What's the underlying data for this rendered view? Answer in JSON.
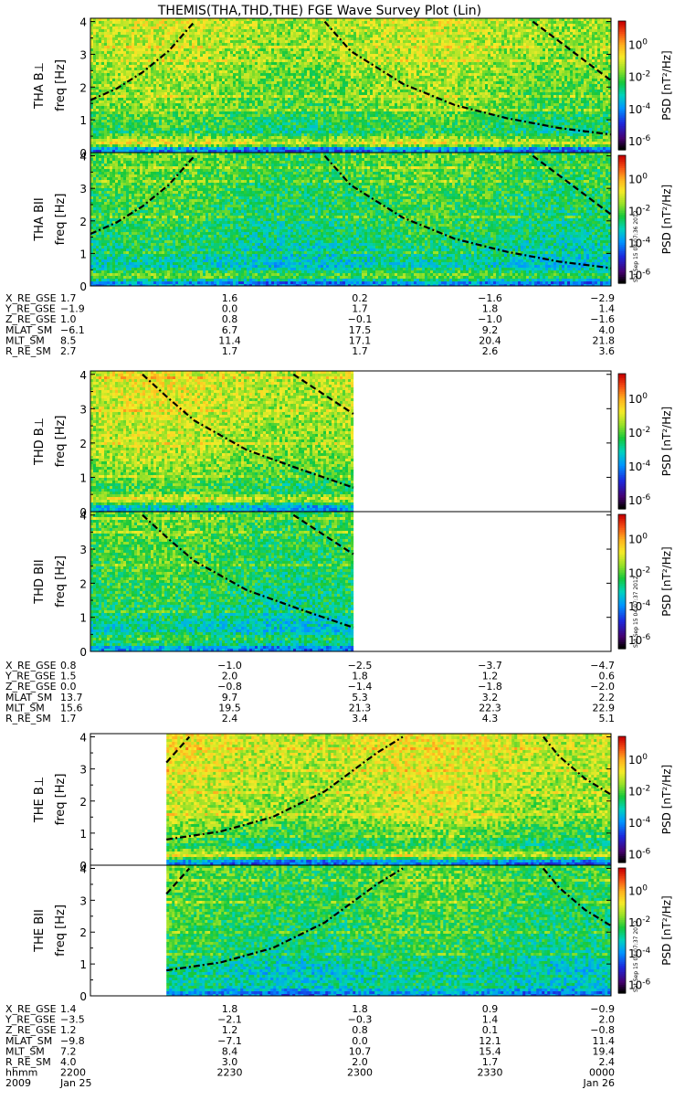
{
  "title": "THEMIS(THA,THD,THE) FGE Wave Survey Plot (Lin)",
  "colorbar": {
    "label": "PSD [nT²/Hz]",
    "exponents": [
      "0",
      "-2",
      "-4",
      "-6"
    ],
    "base": "10"
  },
  "stamps": {
    "tha": "Sat Sep 15 04:07:36 2012",
    "thd": "Sat Sep 15 04:07:37 2012",
    "the": "Sat Sep 15 04:07:37 2012"
  },
  "ylabel_common": "freq [Hz]",
  "freq_ticks": [
    "0",
    "1",
    "2",
    "3",
    "4"
  ],
  "chart_data": [
    {
      "type": "heatmap",
      "title": "THA B⊥",
      "ylabel": "freq [Hz]",
      "ylim": [
        0,
        4.1
      ],
      "colorscale": "rainbow",
      "colorbar_ylim_log10": [
        -6.5,
        1.5
      ],
      "x_start_frac": 0.0,
      "x_end_frac": 1.0,
      "psd_log10_profile": [
        {
          "freq": 0.1,
          "level": -4.2
        },
        {
          "freq": 0.3,
          "level": -0.8
        },
        {
          "freq": 0.6,
          "level": -2.6
        },
        {
          "freq": 1.5,
          "level": -1.8
        },
        {
          "freq": 4.0,
          "level": -1.2
        }
      ],
      "curves": [
        {
          "style": "dashdot",
          "points": [
            [
              0,
              1.6
            ],
            [
              0.05,
              1.95
            ],
            [
              0.1,
              2.45
            ],
            [
              0.15,
              3.1
            ],
            [
              0.2,
              4.0
            ]
          ]
        },
        {
          "style": "dashdot",
          "points": [
            [
              0.45,
              4.0
            ],
            [
              0.5,
              3.1
            ],
            [
              0.6,
              2.1
            ],
            [
              0.7,
              1.45
            ],
            [
              0.8,
              1.05
            ],
            [
              0.9,
              0.75
            ],
            [
              1.0,
              0.55
            ]
          ]
        },
        {
          "style": "dashed",
          "points": [
            [
              0.85,
              4.0
            ],
            [
              0.9,
              3.4
            ],
            [
              0.95,
              2.8
            ],
            [
              1.0,
              2.2
            ]
          ]
        }
      ]
    },
    {
      "type": "heatmap",
      "title": "THA BII",
      "ylabel": "freq [Hz]",
      "ylim": [
        0,
        4.1
      ],
      "colorscale": "rainbow",
      "x_start_frac": 0.0,
      "x_end_frac": 1.0,
      "psd_log10_profile": [
        {
          "freq": 0.1,
          "level": -4.0
        },
        {
          "freq": 0.3,
          "level": -1.8
        },
        {
          "freq": 0.6,
          "level": -3.2
        },
        {
          "freq": 1.5,
          "level": -2.6
        },
        {
          "freq": 4.0,
          "level": -2.0
        }
      ],
      "curves": [
        {
          "style": "dashdot",
          "points": [
            [
              0,
              1.6
            ],
            [
              0.05,
              1.95
            ],
            [
              0.1,
              2.45
            ],
            [
              0.15,
              3.1
            ],
            [
              0.2,
              4.0
            ]
          ]
        },
        {
          "style": "dashdot",
          "points": [
            [
              0.45,
              4.0
            ],
            [
              0.5,
              3.1
            ],
            [
              0.6,
              2.1
            ],
            [
              0.7,
              1.45
            ],
            [
              0.8,
              1.05
            ],
            [
              0.9,
              0.75
            ],
            [
              1.0,
              0.55
            ]
          ]
        },
        {
          "style": "dashed",
          "points": [
            [
              0.85,
              4.0
            ],
            [
              0.9,
              3.4
            ],
            [
              0.95,
              2.8
            ],
            [
              1.0,
              2.2
            ]
          ]
        }
      ]
    },
    {
      "type": "heatmap",
      "title": "THD B⊥",
      "ylabel": "freq [Hz]",
      "ylim": [
        0,
        4.1
      ],
      "colorscale": "rainbow",
      "x_start_frac": 0.0,
      "x_end_frac": 0.505,
      "psd_log10_profile": [
        {
          "freq": 0.1,
          "level": -4.0
        },
        {
          "freq": 0.35,
          "level": -0.9
        },
        {
          "freq": 0.6,
          "level": -2.4
        },
        {
          "freq": 1.5,
          "level": -1.5
        },
        {
          "freq": 4.0,
          "level": -1.0
        }
      ],
      "curves": [
        {
          "style": "dashdot",
          "points": [
            [
              0.1,
              4.0
            ],
            [
              0.15,
              3.3
            ],
            [
              0.2,
              2.65
            ],
            [
              0.3,
              1.8
            ],
            [
              0.4,
              1.25
            ],
            [
              0.505,
              0.7
            ]
          ]
        },
        {
          "style": "dashed",
          "points": [
            [
              0.39,
              4.0
            ],
            [
              0.45,
              3.4
            ],
            [
              0.505,
              2.85
            ]
          ]
        }
      ]
    },
    {
      "type": "heatmap",
      "title": "THD BII",
      "ylabel": "freq [Hz]",
      "ylim": [
        0,
        4.1
      ],
      "colorscale": "rainbow",
      "x_start_frac": 0.0,
      "x_end_frac": 0.505,
      "psd_log10_profile": [
        {
          "freq": 0.1,
          "level": -4.0
        },
        {
          "freq": 0.35,
          "level": -2.2
        },
        {
          "freq": 0.6,
          "level": -3.2
        },
        {
          "freq": 1.5,
          "level": -2.5
        },
        {
          "freq": 4.0,
          "level": -2.0
        }
      ],
      "curves": [
        {
          "style": "dashdot",
          "points": [
            [
              0.1,
              4.0
            ],
            [
              0.15,
              3.3
            ],
            [
              0.2,
              2.65
            ],
            [
              0.3,
              1.8
            ],
            [
              0.4,
              1.25
            ],
            [
              0.505,
              0.7
            ]
          ]
        },
        {
          "style": "dashed",
          "points": [
            [
              0.39,
              4.0
            ],
            [
              0.45,
              3.4
            ],
            [
              0.505,
              2.85
            ]
          ]
        }
      ]
    },
    {
      "type": "heatmap",
      "title": "THE B⊥",
      "ylabel": "freq [Hz]",
      "ylim": [
        0,
        4.1
      ],
      "colorscale": "rainbow",
      "x_start_frac": 0.146,
      "x_end_frac": 1.0,
      "psd_log10_profile": [
        {
          "freq": 0.1,
          "level": -4.2
        },
        {
          "freq": 0.3,
          "level": -1.0
        },
        {
          "freq": 0.6,
          "level": -2.6
        },
        {
          "freq": 1.5,
          "level": -1.4
        },
        {
          "freq": 4.0,
          "level": -0.9
        }
      ],
      "curves": [
        {
          "style": "dashdot",
          "points": [
            [
              0.146,
              0.8
            ],
            [
              0.25,
              1.05
            ],
            [
              0.35,
              1.5
            ],
            [
              0.45,
              2.3
            ],
            [
              0.55,
              3.5
            ],
            [
              0.6,
              4.0
            ]
          ]
        },
        {
          "style": "dashed",
          "points": [
            [
              0.146,
              3.2
            ],
            [
              0.19,
              4.0
            ]
          ]
        },
        {
          "style": "dashdot",
          "points": [
            [
              0.87,
              4.0
            ],
            [
              0.9,
              3.4
            ],
            [
              0.95,
              2.7
            ],
            [
              1.0,
              2.2
            ]
          ]
        }
      ]
    },
    {
      "type": "heatmap",
      "title": "THE BII",
      "ylabel": "freq [Hz]",
      "ylim": [
        0,
        4.1
      ],
      "colorscale": "rainbow",
      "x_start_frac": 0.146,
      "x_end_frac": 1.0,
      "psd_log10_profile": [
        {
          "freq": 0.1,
          "level": -4.0
        },
        {
          "freq": 0.3,
          "level": -2.8
        },
        {
          "freq": 0.6,
          "level": -3.2
        },
        {
          "freq": 1.5,
          "level": -2.5
        },
        {
          "freq": 4.0,
          "level": -2.0
        }
      ],
      "curves": [
        {
          "style": "dashdot",
          "points": [
            [
              0.146,
              0.8
            ],
            [
              0.25,
              1.05
            ],
            [
              0.35,
              1.5
            ],
            [
              0.45,
              2.3
            ],
            [
              0.55,
              3.5
            ],
            [
              0.6,
              4.0
            ]
          ]
        },
        {
          "style": "dashed",
          "points": [
            [
              0.146,
              3.2
            ],
            [
              0.19,
              4.0
            ]
          ]
        },
        {
          "style": "dashdot",
          "points": [
            [
              0.87,
              4.0
            ],
            [
              0.9,
              3.4
            ],
            [
              0.95,
              2.7
            ],
            [
              1.0,
              2.2
            ]
          ]
        }
      ]
    }
  ],
  "ephemeris": {
    "tha": {
      "labels": [
        "X_RE_GSE",
        "Y_RE_GSE",
        "Z_RE_GSE",
        "MLAT_SM",
        "MLT_SM",
        "R_RE_SM"
      ],
      "rows": [
        [
          "1.7",
          "1.6",
          "0.2",
          "−1.6",
          "−2.9"
        ],
        [
          "−1.9",
          "0.0",
          "1.7",
          "1.8",
          "1.4"
        ],
        [
          "1.0",
          "0.8",
          "−0.1",
          "−1.0",
          "−1.6"
        ],
        [
          "−6.1",
          "6.7",
          "17.5",
          "9.2",
          "4.0"
        ],
        [
          "8.5",
          "11.4",
          "17.1",
          "20.4",
          "21.8"
        ],
        [
          "2.7",
          "1.7",
          "1.7",
          "2.6",
          "3.6"
        ]
      ]
    },
    "thd": {
      "labels": [
        "X_RE_GSE",
        "Y_RE_GSE",
        "Z_RE_GSE",
        "MLAT_SM",
        "MLT_SM",
        "R_RE_SM"
      ],
      "rows": [
        [
          "0.8",
          "−1.0",
          "−2.5",
          "−3.7",
          "−4.7"
        ],
        [
          "1.5",
          "2.0",
          "1.8",
          "1.2",
          "0.6"
        ],
        [
          "0.0",
          "−0.8",
          "−1.4",
          "−1.8",
          "−2.0"
        ],
        [
          "13.7",
          "9.7",
          "5.3",
          "3.2",
          "2.2"
        ],
        [
          "15.6",
          "19.5",
          "21.3",
          "22.3",
          "22.9"
        ],
        [
          "1.7",
          "2.4",
          "3.4",
          "4.3",
          "5.1"
        ]
      ]
    },
    "the": {
      "labels": [
        "X_RE_GSE",
        "Y_RE_GSE",
        "Z_RE_GSE",
        "MLAT_SM",
        "MLT_SM",
        "R_RE_SM",
        "hhmm",
        "2009"
      ],
      "rows": [
        [
          "1.4",
          "1.8",
          "1.8",
          "0.9",
          "−0.9"
        ],
        [
          "−3.5",
          "−2.1",
          "−0.3",
          "1.4",
          "2.0"
        ],
        [
          "1.2",
          "1.2",
          "0.8",
          "0.1",
          "−0.8"
        ],
        [
          "−9.8",
          "−7.1",
          "0.0",
          "12.1",
          "11.4"
        ],
        [
          "7.2",
          "8.4",
          "10.7",
          "15.4",
          "19.4"
        ],
        [
          "4.0",
          "3.0",
          "2.0",
          "1.7",
          "2.4"
        ],
        [
          "2200",
          "2230",
          "2300",
          "2330",
          "0000"
        ],
        [
          "Jan 25",
          "",
          "",
          "",
          "Jan 26"
        ]
      ]
    }
  }
}
